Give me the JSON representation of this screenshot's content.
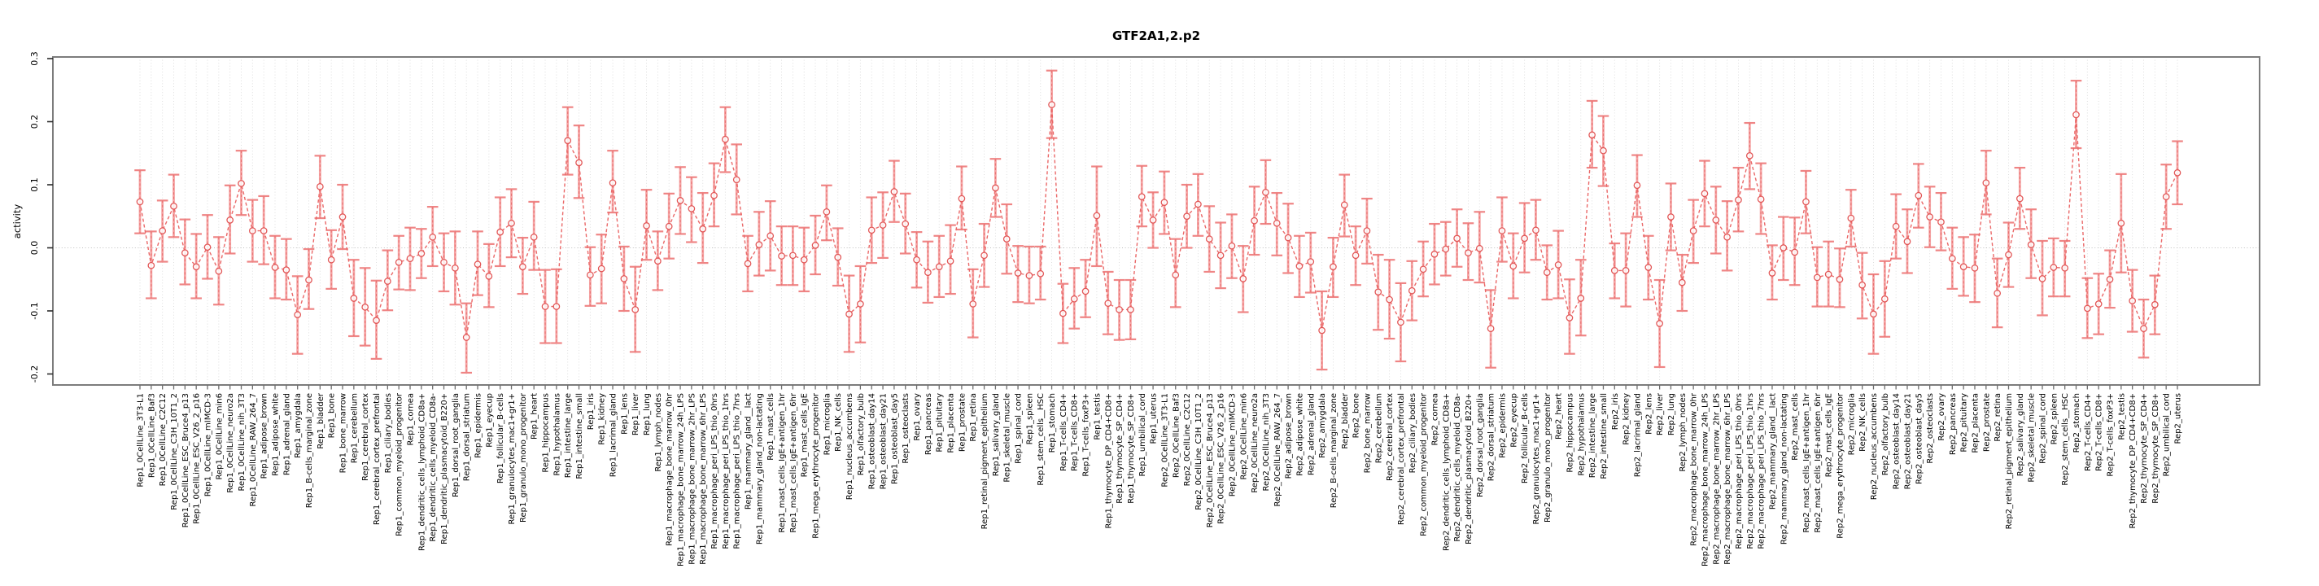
{
  "title": "GTF2A1,2.p2",
  "chart_data": {
    "type": "line",
    "subtype": "points-with-error-bars",
    "title": "GTF2A1,2.p2",
    "xlabel": "",
    "ylabel": "activity",
    "ylim": [
      -0.217,
      0.303
    ],
    "yticks": [
      -0.2,
      -0.1,
      0.0,
      0.1,
      0.2,
      0.3
    ],
    "ytick_labels": [
      "-0.2",
      "-0.1",
      "0.0",
      "0.1",
      "0.2",
      "0.3"
    ],
    "grid": "dotted vertical gridline per category; dotted horizontal line at y=0",
    "legend_position": "none",
    "marker": "open-circle",
    "line_style": "dashed",
    "colors": {
      "marker": "#e25757",
      "line": "#ea6868",
      "error_bar": "#f5a3a3",
      "error_cap": "#ef8585",
      "error_center_dash": "#e87070",
      "grid": "#dadada",
      "zero_line": "#bfbfbf",
      "box": "#7c7c7c",
      "y_tick": "#2b2b2b",
      "x_tick": "#6e6e6e",
      "text": "#000000"
    },
    "categories": [
      "Rep1_0CellLine_3T3-L1",
      "Rep1_0CellLine_Baf3",
      "Rep1_0CellLine_C2C12",
      "Rep1_0CellLine_C3H_10T1_2",
      "Rep1_0CellLine_ESC_Bruce4_p13",
      "Rep1_0CellLine_ESC_V26_2_p16",
      "Rep1_0CellLine_mIMCD-3",
      "Rep1_0CellLine_min6",
      "Rep1_0CellLine_neuro2a",
      "Rep1_0CellLine_nih_3T3",
      "Rep1_0CellLine_RAW_264_7",
      "Rep1_adipose_brown",
      "Rep1_adipose_white",
      "Rep1_adrenal_gland",
      "Rep1_amygdala",
      "Rep1_B-cells_marginal_zone",
      "Rep1_bladder",
      "Rep1_bone",
      "Rep1_bone_marrow",
      "Rep1_cerebellum",
      "Rep1_cerebral_cortex",
      "Rep1_cerebral_cortex_prefrontal",
      "Rep1_ciliary_bodies",
      "Rep1_common_myeloid_progenitor",
      "Rep1_cornea",
      "Rep1_dendritic_cells_lymphoid_CD8a+",
      "Rep1_dendritic_cells_myeloid_CD8a-",
      "Rep1_dendritic_plasmacytoid_B220+",
      "Rep1_dorsal_root_ganglia",
      "Rep1_dorsal_striatum",
      "Rep1_epidermis",
      "Rep1_eyecup",
      "Rep1_follicular_B-cells",
      "Rep1_granulocytes_mac1+gr1+",
      "Rep1_granulo_mono_progenitor",
      "Rep1_heart",
      "Rep1_hippocampus",
      "Rep1_hypothalamus",
      "Rep1_intestine_large",
      "Rep1_intestine_small",
      "Rep1_iris",
      "Rep1_kidney",
      "Rep1_lacrimal_gland",
      "Rep1_lens",
      "Rep1_liver",
      "Rep1_lung",
      "Rep1_lymph_nodes",
      "Rep1_macrophage_bone_marrow_0hr",
      "Rep1_macrophage_bone_marrow_24h_LPS",
      "Rep1_macrophage_bone_marrow_2hr_LPS",
      "Rep1_macrophage_bone_marrow_6hr_LPS",
      "Rep1_macrophage_peri_LPS_thio_0hrs",
      "Rep1_macrophage_peri_LPS_thio_1hrs",
      "Rep1_macrophage_peri_LPS_thio_7hrs",
      "Rep1_mammary_gland__lact",
      "Rep1_mammary_gland_non-lactating",
      "Rep1_mast_cells",
      "Rep1_mast_cells_IgE+antigen_1hr",
      "Rep1_mast_cells_IgE+antigen_6hr",
      "Rep1_mast_cells_IgE",
      "Rep1_mega_erythrocyte_progenitor",
      "Rep1_microglia",
      "Rep1_NK_cells",
      "Rep1_nucleus_accumbens",
      "Rep1_olfactory_bulb",
      "Rep1_osteoblast_day14",
      "Rep1_osteoblast_day21",
      "Rep1_osteoblast_day5",
      "Rep1_osteoclasts",
      "Rep1_ovary",
      "Rep1_pancreas",
      "Rep1_pituitary",
      "Rep1_placenta",
      "Rep1_prostate",
      "Rep1_retina",
      "Rep1_retinal_pigment_epithelium",
      "Rep1_salivary_gland",
      "Rep1_skeletal_muscle",
      "Rep1_spinal_cord",
      "Rep1_spleen",
      "Rep1_stem_cells__HSC",
      "Rep1_stomach",
      "Rep1_T-cells_CD4+",
      "Rep1_T-cells_CD8+",
      "Rep1_T-cells_foxP3+",
      "Rep1_testis",
      "Rep1_thymocyte_DP_CD4+CD8+",
      "Rep1_thymocyte_SP_CD4+",
      "Rep1_thymocyte_SP_CD8+",
      "Rep1_umbilical_cord",
      "Rep1_uterus",
      "Rep2_0CellLine_3T3-L1",
      "Rep2_0CellLine_Baf3",
      "Rep2_0CellLine_C2C12",
      "Rep2_0CellLine_C3H_10T1_2",
      "Rep2_0CellLine_ESC_Bruce4_p13",
      "Rep2_0CellLine_ESC_V26_2_p16",
      "Rep2_0CellLine_mIMCD-3",
      "Rep2_0CellLine_min6",
      "Rep2_0CellLine_neuro2a",
      "Rep2_0CellLine_nih_3T3",
      "Rep2_0CellLine_RAW_264_7",
      "Rep2_adipose_brown",
      "Rep2_adipose_white",
      "Rep2_adrenal_gland",
      "Rep2_amygdala",
      "Rep2_B-cells_marginal_zone",
      "Rep2_bladder",
      "Rep2_bone",
      "Rep2_bone_marrow",
      "Rep2_cerebellum",
      "Rep2_cerebral_cortex",
      "Rep2_cerebral_cortex_prefrontal",
      "Rep2_ciliary_bodies",
      "Rep2_common_myeloid_progenitor",
      "Rep2_cornea",
      "Rep2_dendritic_cells_lymphoid_CD8a+",
      "Rep2_dendritic_cells_myeloid_CD8a-",
      "Rep2_dendritic_plasmacytoid_B220+",
      "Rep2_dorsal_root_ganglia",
      "Rep2_dorsal_striatum",
      "Rep2_epidermis",
      "Rep2_eyecup",
      "Rep2_follicular_B-cells",
      "Rep2_granulocytes_mac1+gr1+",
      "Rep2_granulo_mono_progenitor",
      "Rep2_heart",
      "Rep2_hippocampus",
      "Rep2_hypothalamus",
      "Rep2_intestine_large",
      "Rep2_intestine_small",
      "Rep2_iris",
      "Rep2_kidney",
      "Rep2_lacrimal_gland",
      "Rep2_lens",
      "Rep2_liver",
      "Rep2_lung",
      "Rep2_lymph_nodes",
      "Rep2_macrophage_bone_marrow_0hr",
      "Rep2_macrophage_bone_marrow_24h_LPS",
      "Rep2_macrophage_bone_marrow_2hr_LPS",
      "Rep2_macrophage_bone_marrow_6hr_LPS",
      "Rep2_macrophage_peri_LPS_thio_0hrs",
      "Rep2_macrophage_peri_LPS_thio_1hrs",
      "Rep2_macrophage_peri_LPS_thio_7hrs",
      "Rep2_mammary_gland__lact",
      "Rep2_mammary_gland_non-lactating",
      "Rep2_mast_cells",
      "Rep2_mast_cells_IgE+antigen_1hr",
      "Rep2_mast_cells_IgE+antigen_6hr",
      "Rep2_mast_cells_IgE",
      "Rep2_mega_erythrocyte_progenitor",
      "Rep2_microglia",
      "Rep2_NK_cells",
      "Rep2_nucleus_accumbens",
      "Rep2_olfactory_bulb",
      "Rep2_osteoblast_day14",
      "Rep2_osteoblast_day21",
      "Rep2_osteoblast_day5",
      "Rep2_osteoclasts",
      "Rep2_ovary",
      "Rep2_pancreas",
      "Rep2_pituitary",
      "Rep2_placenta",
      "Rep2_prostate",
      "Rep2_retina",
      "Rep2_retinal_pigment_epithelium",
      "Rep2_salivary_gland",
      "Rep2_skeletal_muscle",
      "Rep2_spinal_cord",
      "Rep2_spleen",
      "Rep2_stem_cells__HSC",
      "Rep2_stomach",
      "Rep2_T-cells_CD4+",
      "Rep2_T-cells_CD8+",
      "Rep2_T-cells_foxP3+",
      "Rep2_testis",
      "Rep2_thymocyte_DP_CD4+CD8+",
      "Rep2_thymocyte_SP_CD4+",
      "Rep2_thymocyte_SP_CD8+",
      "Rep2_umbilical_cord",
      "Rep2_uterus"
    ],
    "series": [
      {
        "name": "activity",
        "values": [
          0.073,
          -0.028,
          0.027,
          0.066,
          -0.008,
          -0.03,
          0.001,
          -0.037,
          0.044,
          0.102,
          0.027,
          0.027,
          -0.031,
          -0.035,
          -0.106,
          -0.051,
          0.097,
          -0.019,
          0.049,
          -0.08,
          -0.094,
          -0.115,
          -0.053,
          -0.023,
          -0.017,
          -0.009,
          0.017,
          -0.023,
          -0.032,
          -0.142,
          -0.026,
          -0.045,
          0.025,
          0.039,
          -0.03,
          0.017,
          -0.093,
          -0.093,
          0.17,
          0.135,
          -0.043,
          -0.033,
          0.103,
          -0.049,
          -0.098,
          0.035,
          -0.021,
          0.034,
          0.075,
          0.062,
          0.03,
          0.083,
          0.172,
          0.108,
          -0.025,
          0.005,
          0.019,
          -0.013,
          -0.012,
          -0.019,
          0.004,
          0.057,
          -0.015,
          -0.105,
          -0.089,
          0.028,
          0.036,
          0.089,
          0.038,
          -0.019,
          -0.039,
          -0.03,
          -0.021,
          0.078,
          -0.089,
          -0.012,
          0.095,
          0.014,
          -0.04,
          -0.044,
          -0.041,
          0.227,
          -0.104,
          -0.081,
          -0.069,
          0.051,
          -0.088,
          -0.098,
          -0.098,
          0.081,
          0.044,
          0.072,
          -0.043,
          0.05,
          0.069,
          0.014,
          -0.012,
          0.003,
          -0.049,
          0.043,
          0.088,
          0.039,
          0.016,
          -0.029,
          -0.022,
          -0.131,
          -0.03,
          0.068,
          -0.012,
          0.027,
          -0.07,
          -0.082,
          -0.118,
          -0.068,
          -0.034,
          -0.01,
          -0.002,
          0.015,
          -0.008,
          -0.001,
          -0.128,
          0.027,
          -0.029,
          0.015,
          0.028,
          -0.039,
          -0.027,
          -0.111,
          -0.08,
          0.179,
          0.154,
          -0.036,
          -0.036,
          0.099,
          -0.031,
          -0.12,
          0.049,
          -0.055,
          0.027,
          0.086,
          0.044,
          0.017,
          0.076,
          0.146,
          0.077,
          -0.04,
          0.0,
          -0.007,
          0.073,
          -0.047,
          -0.042,
          -0.05,
          0.047,
          -0.059,
          -0.105,
          -0.081,
          0.034,
          0.01,
          0.083,
          0.049,
          0.041,
          -0.017,
          -0.03,
          -0.032,
          0.103,
          -0.072,
          -0.011,
          0.078,
          0.005,
          -0.049,
          -0.031,
          -0.032,
          0.211,
          -0.096,
          -0.089,
          -0.05,
          0.039,
          -0.084,
          -0.128,
          -0.09,
          0.081,
          0.119
        ],
        "lower": [
          0.023,
          -0.08,
          -0.022,
          0.017,
          -0.058,
          -0.08,
          -0.049,
          -0.09,
          -0.009,
          0.052,
          -0.022,
          -0.026,
          -0.08,
          -0.082,
          -0.168,
          -0.097,
          0.047,
          -0.065,
          -0.002,
          -0.14,
          -0.155,
          -0.176,
          -0.099,
          -0.066,
          -0.067,
          -0.048,
          -0.029,
          -0.069,
          -0.09,
          -0.198,
          -0.075,
          -0.094,
          -0.029,
          -0.015,
          -0.073,
          -0.035,
          -0.151,
          -0.151,
          0.116,
          0.079,
          -0.092,
          -0.088,
          0.056,
          -0.1,
          -0.165,
          -0.019,
          -0.067,
          -0.017,
          0.022,
          0.009,
          -0.024,
          0.034,
          0.12,
          0.053,
          -0.069,
          -0.044,
          -0.036,
          -0.059,
          -0.059,
          -0.069,
          -0.042,
          0.012,
          -0.06,
          -0.165,
          -0.15,
          -0.024,
          -0.016,
          0.041,
          -0.009,
          -0.063,
          -0.087,
          -0.078,
          -0.073,
          0.029,
          -0.142,
          -0.062,
          0.049,
          -0.041,
          -0.086,
          -0.088,
          -0.082,
          0.174,
          -0.151,
          -0.128,
          -0.11,
          -0.029,
          -0.137,
          -0.146,
          -0.145,
          0.034,
          0.0,
          0.022,
          -0.094,
          0.0,
          0.019,
          -0.038,
          -0.064,
          -0.048,
          -0.102,
          -0.011,
          0.038,
          -0.012,
          -0.04,
          -0.078,
          -0.071,
          -0.193,
          -0.078,
          0.018,
          -0.059,
          -0.025,
          -0.13,
          -0.144,
          -0.18,
          -0.115,
          -0.077,
          -0.058,
          -0.044,
          -0.03,
          -0.051,
          -0.055,
          -0.19,
          -0.022,
          -0.08,
          -0.039,
          -0.019,
          -0.082,
          -0.08,
          -0.168,
          -0.139,
          0.127,
          0.098,
          -0.08,
          -0.093,
          0.049,
          -0.082,
          -0.189,
          -0.004,
          -0.1,
          -0.024,
          0.034,
          -0.009,
          -0.036,
          0.026,
          0.093,
          0.022,
          -0.082,
          -0.051,
          -0.059,
          0.023,
          -0.093,
          -0.093,
          -0.094,
          0.002,
          -0.112,
          -0.168,
          -0.141,
          -0.017,
          -0.04,
          0.032,
          0.001,
          -0.004,
          -0.065,
          -0.076,
          -0.086,
          0.053,
          -0.126,
          -0.062,
          0.03,
          -0.048,
          -0.107,
          -0.077,
          -0.077,
          0.158,
          -0.143,
          -0.137,
          -0.095,
          -0.039,
          -0.133,
          -0.174,
          -0.137,
          0.03,
          0.069
        ],
        "upper": [
          0.123,
          0.026,
          0.075,
          0.116,
          0.045,
          0.022,
          0.052,
          0.017,
          0.099,
          0.154,
          0.076,
          0.082,
          0.019,
          0.014,
          -0.045,
          -0.002,
          0.146,
          0.028,
          0.1,
          -0.019,
          -0.032,
          -0.052,
          -0.004,
          0.019,
          0.032,
          0.03,
          0.065,
          0.023,
          0.026,
          -0.088,
          0.026,
          0.006,
          0.08,
          0.093,
          0.016,
          0.073,
          -0.035,
          -0.034,
          0.223,
          0.194,
          0.001,
          0.021,
          0.154,
          0.002,
          -0.03,
          0.092,
          0.026,
          0.086,
          0.128,
          0.112,
          0.087,
          0.134,
          0.223,
          0.164,
          0.019,
          0.057,
          0.074,
          0.034,
          0.034,
          0.032,
          0.051,
          0.099,
          0.031,
          -0.044,
          -0.029,
          0.08,
          0.088,
          0.138,
          0.086,
          0.025,
          0.01,
          0.019,
          0.036,
          0.129,
          -0.034,
          0.038,
          0.141,
          0.069,
          0.003,
          0.002,
          0.002,
          0.281,
          -0.057,
          -0.032,
          -0.019,
          0.129,
          -0.038,
          -0.051,
          -0.051,
          0.13,
          0.088,
          0.121,
          0.014,
          0.1,
          0.117,
          0.066,
          0.04,
          0.053,
          0.003,
          0.097,
          0.139,
          0.087,
          0.07,
          0.019,
          0.024,
          -0.069,
          0.016,
          0.116,
          0.034,
          0.078,
          -0.011,
          -0.019,
          -0.056,
          -0.021,
          0.01,
          0.038,
          0.041,
          0.061,
          0.039,
          0.057,
          -0.067,
          0.08,
          0.023,
          0.071,
          0.076,
          0.004,
          0.027,
          -0.05,
          -0.019,
          0.233,
          0.209,
          0.007,
          0.023,
          0.147,
          0.019,
          -0.051,
          0.102,
          -0.011,
          0.076,
          0.138,
          0.097,
          0.074,
          0.127,
          0.198,
          0.134,
          0.004,
          0.049,
          0.048,
          0.122,
          0.001,
          0.01,
          -0.001,
          0.092,
          -0.008,
          -0.042,
          -0.021,
          0.085,
          0.061,
          0.133,
          0.097,
          0.087,
          0.032,
          0.017,
          0.021,
          0.154,
          -0.017,
          0.04,
          0.127,
          0.061,
          0.011,
          0.015,
          0.011,
          0.265,
          -0.048,
          -0.041,
          -0.004,
          0.117,
          -0.035,
          -0.082,
          -0.044,
          0.132,
          0.169
        ]
      }
    ]
  }
}
